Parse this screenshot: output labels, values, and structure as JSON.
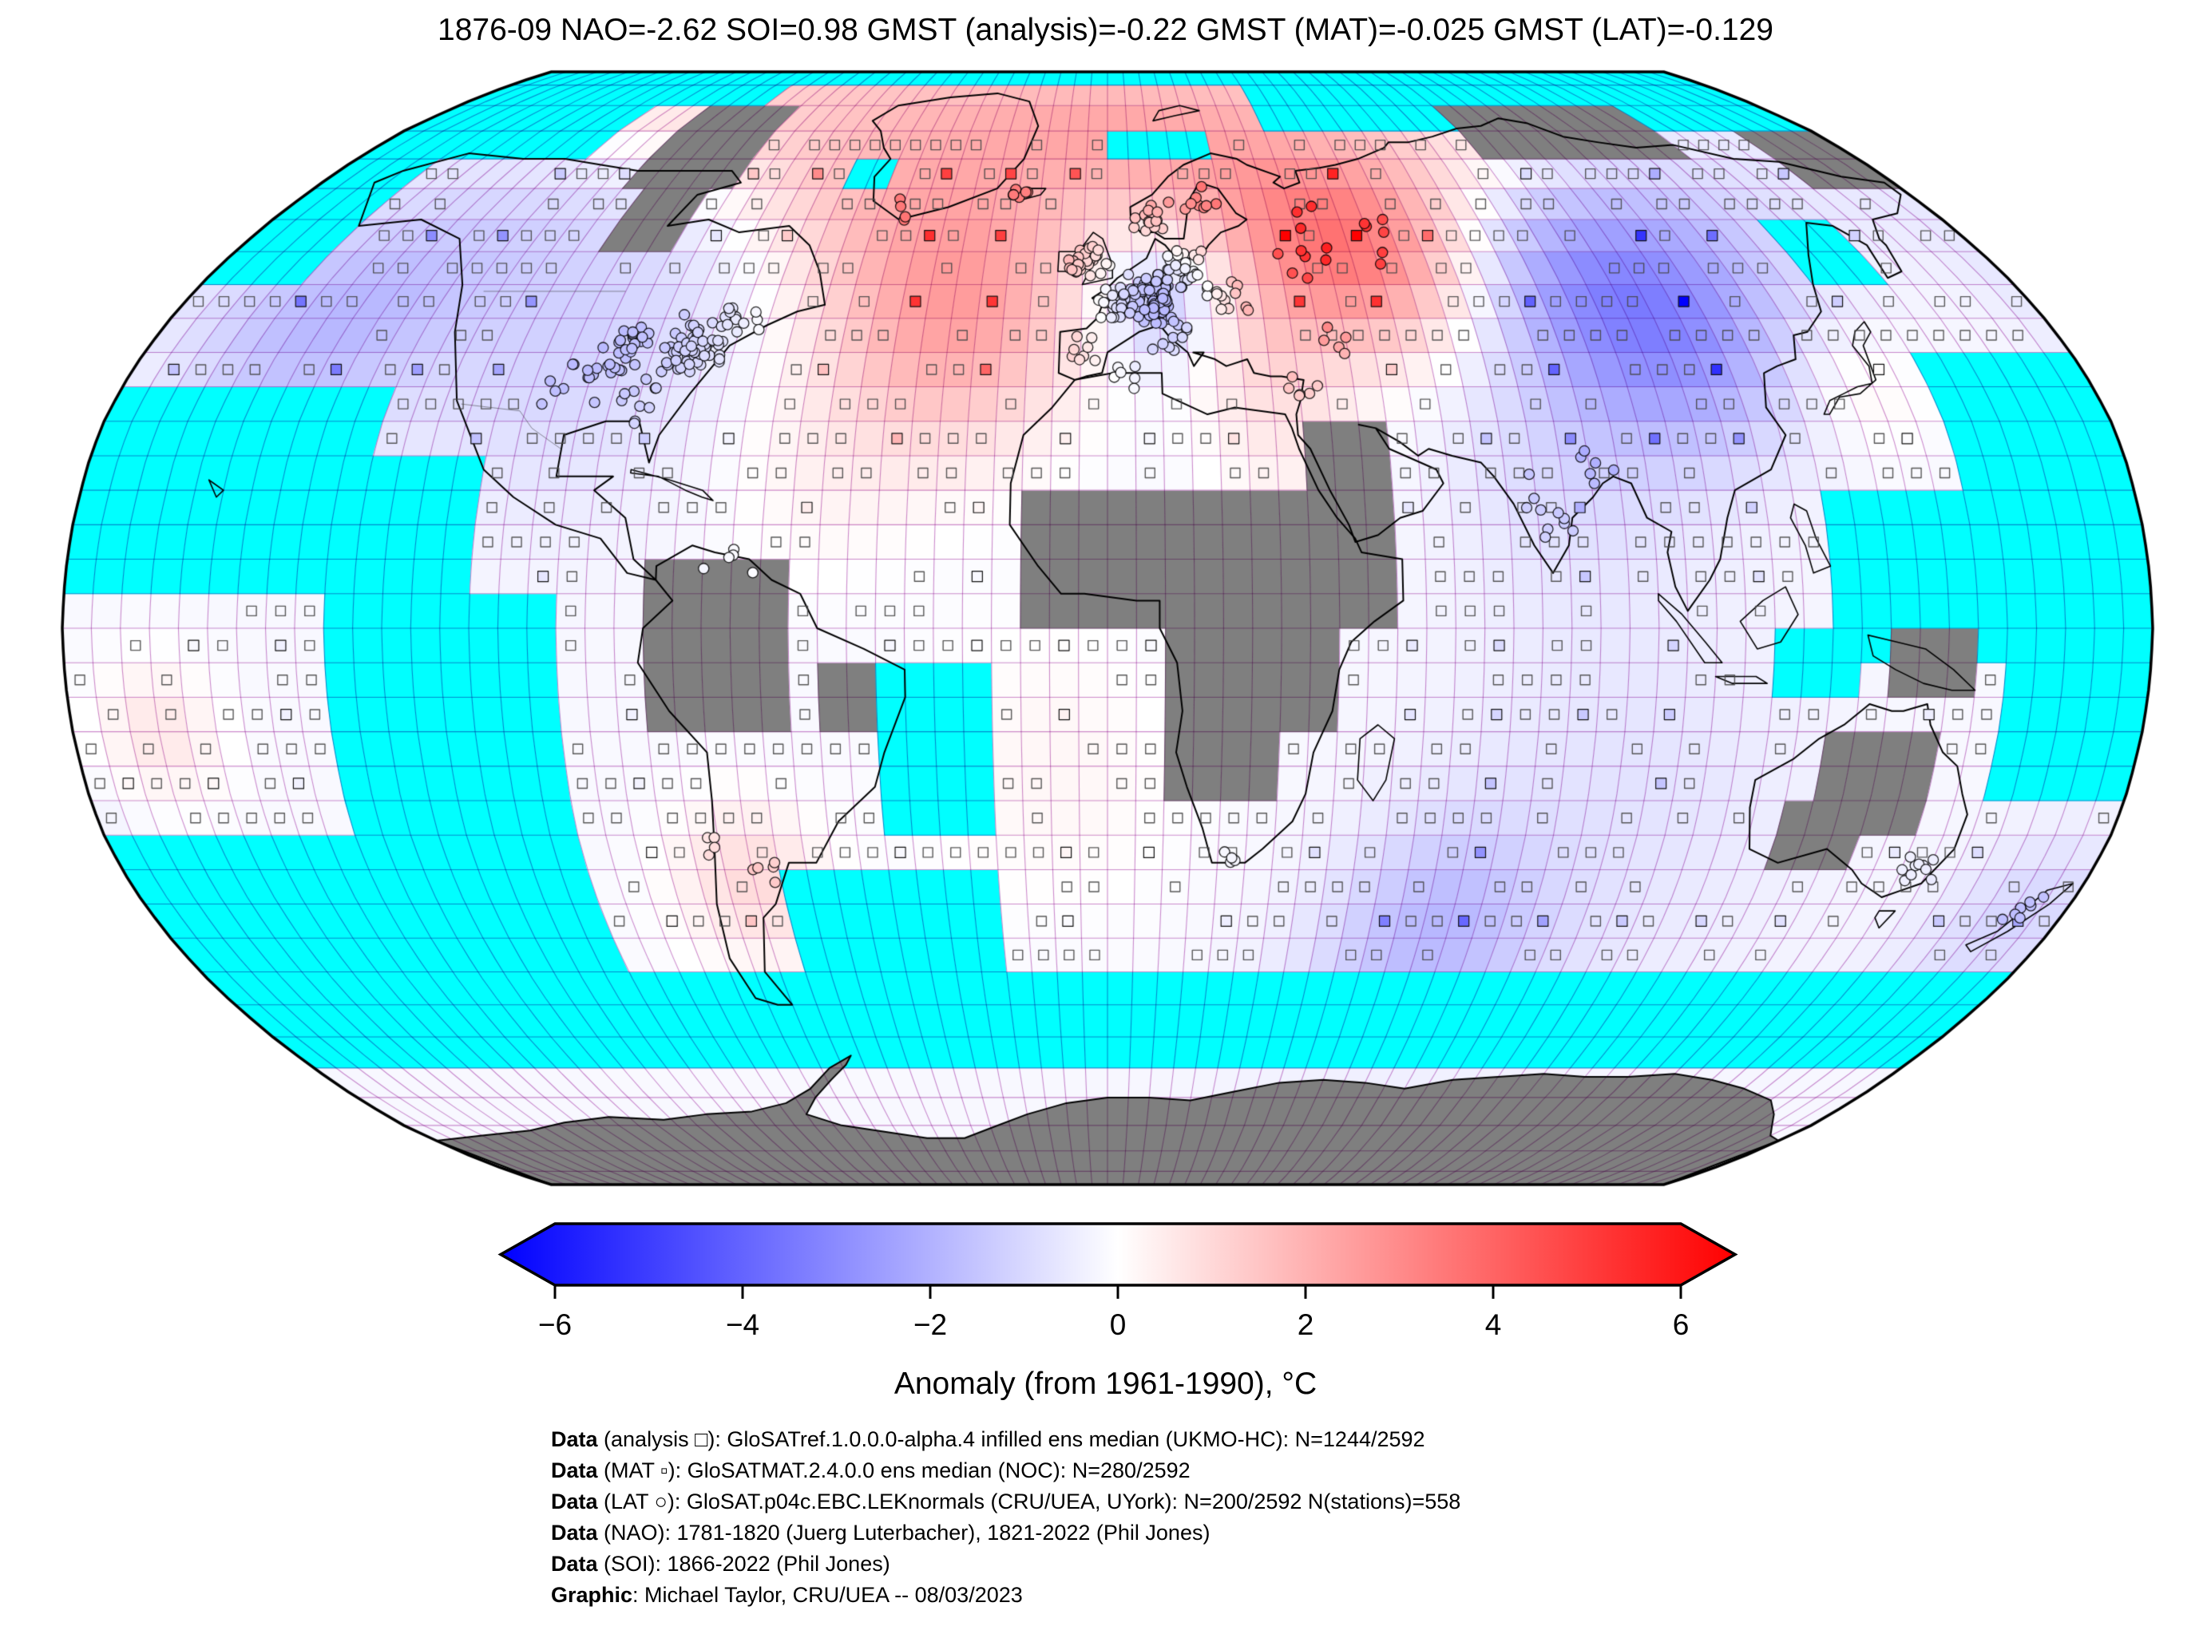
{
  "title": "1876-09 NAO=-2.62 SOI=0.98 GMST (analysis)=-0.22 GMST (MAT)=-0.025 GMST (LAT)=-0.129",
  "colorbar": {
    "label": "Anomaly (from 1961-1990), °C",
    "min": -6,
    "max": 6,
    "tick_values": [
      -6,
      -4,
      -2,
      0,
      2,
      4,
      6
    ],
    "tick_labels": [
      "−6",
      "−4",
      "−2",
      "0",
      "2",
      "4",
      "6"
    ],
    "color_min": "#0000ff",
    "color_mid": "#ffffff",
    "color_max": "#ff0000"
  },
  "credits": [
    {
      "label": "Data",
      "text": " (analysis □): GloSATref.1.0.0.0-alpha.4 infilled ens median (UKMO-HC): N=1244/2592"
    },
    {
      "label": "Data",
      "text": " (MAT ▫): GloSATMAT.2.4.0.0 ens median (NOC): N=280/2592"
    },
    {
      "label": "Data",
      "text": " (LAT ○): GloSAT.p04c.EBC.LEKnormals (CRU/UEA, UYork): N=200/2592 N(stations)=558"
    },
    {
      "label": "Data",
      "text": " (NAO): 1781-1820 (Juerg Luterbacher), 1821-2022 (Phil Jones)"
    },
    {
      "label": "Data",
      "text": " (SOI): 1866-2022 (Phil Jones)"
    },
    {
      "label": "Graphic",
      "text": ": Michael Taylor, CRU/UEA -- 08/03/2023"
    }
  ],
  "chart_data": {
    "type": "heatmap",
    "projection": "robinson",
    "grid_deg": 5,
    "title": "1876-09 NAO=-2.62 SOI=0.98 GMST (analysis)=-0.22 GMST (MAT)=-0.025 GMST (LAT)=-0.129",
    "colorbar_label": "Anomaly (from 1961-1990), °C",
    "value_range": [
      -6,
      6
    ],
    "date": "1876-09",
    "indices": {
      "NAO": -2.62,
      "SOI": 0.98,
      "GMST_analysis": -0.22,
      "GMST_MAT": -0.025,
      "GMST_LAT": -0.129
    },
    "counts": {
      "analysis_cells": "1244/2592",
      "MAT_cells": "280/2592",
      "LAT_cells": "200/2592",
      "stations": 558
    },
    "marker_legend": {
      "analysis": "open square",
      "MAT": "small filled square",
      "LAT": "open circle"
    },
    "colors": {
      "missing_ocean": "#00ffff",
      "missing_land": "#7f7f7f",
      "grid_multiply": "#cd8ccd",
      "coast": "#000000",
      "negative": "#0000ff",
      "zero": "#ffffff",
      "positive": "#ff0000"
    },
    "anomaly_blobs": [
      {
        "lon": -42,
        "lat": 70,
        "amp": 1.9,
        "sigma": 14
      },
      {
        "lon": -28,
        "lat": 45,
        "amp": 2.1,
        "sigma": 13
      },
      {
        "lon": 45,
        "lat": 70,
        "amp": 1.1,
        "sigma": 12
      },
      {
        "lon": 52,
        "lat": 56,
        "amp": 3.0,
        "sigma": 11
      },
      {
        "lon": 28,
        "lat": 44,
        "amp": 1.0,
        "sigma": 9
      },
      {
        "lon": 32,
        "lat": 27,
        "amp": 0.5,
        "sigma": 8
      },
      {
        "lon": 11,
        "lat": 48,
        "amp": -1.7,
        "sigma": 7
      },
      {
        "lon": 103,
        "lat": 47,
        "amp": -2.9,
        "sigma": 14
      },
      {
        "lon": -150,
        "lat": 44,
        "amp": -1.4,
        "sigma": 13
      },
      {
        "lon": -100,
        "lat": 44,
        "amp": -0.9,
        "sigma": 18
      },
      {
        "lon": -50,
        "lat": 25,
        "amp": 0.4,
        "sigma": 12
      },
      {
        "lon": -65,
        "lat": -37,
        "amp": 1.0,
        "sigma": 8
      },
      {
        "lon": 62,
        "lat": -44,
        "amp": -1.3,
        "sigma": 11
      },
      {
        "lon": 90,
        "lat": -25,
        "amp": -0.5,
        "sigma": 22
      },
      {
        "lon": 80,
        "lat": 25,
        "amp": -0.6,
        "sigma": 14
      },
      {
        "lon": 172,
        "lat": -42,
        "amp": -0.8,
        "sigma": 9
      },
      {
        "lon": 136,
        "lat": 36,
        "amp": 0.5,
        "sigma": 7
      },
      {
        "lon": -165,
        "lat": -15,
        "amp": 0.7,
        "sigma": 7
      },
      {
        "lon": -10,
        "lat": -20,
        "amp": 0.35,
        "sigma": 15
      },
      {
        "lon": 0,
        "lat": 0,
        "amp": -0.15,
        "sigma": 10000
      }
    ],
    "missing_ocean_rects": [
      [
        -180,
        180,
        85,
        90
      ],
      [
        -180,
        -125,
        70,
        85
      ],
      [
        -125,
        -95,
        78,
        85
      ],
      [
        40,
        180,
        77,
        85
      ],
      [
        100,
        145,
        75,
        80
      ],
      [
        0,
        25,
        72.5,
        77.5
      ],
      [
        -60,
        -50,
        65,
        70
      ],
      [
        -180,
        -160,
        50,
        68
      ],
      [
        -180,
        -132,
        5,
        37
      ],
      [
        -132,
        -112,
        5,
        25
      ],
      [
        -180,
        -95,
        -48,
        -28
      ],
      [
        -135,
        -95,
        -28,
        5
      ],
      [
        150,
        180,
        18,
        40
      ],
      [
        125,
        180,
        -5,
        18
      ],
      [
        155,
        180,
        -25,
        -5
      ],
      [
        116,
        130,
        -12,
        2
      ],
      [
        140,
        155,
        50,
        58
      ],
      [
        -180,
        180,
        -65,
        -48
      ],
      [
        -60,
        -20,
        -55,
        -33
      ],
      [
        -38,
        -22,
        -30,
        -5
      ]
    ],
    "missing_land_rects": [
      [
        -112,
        -85,
        66,
        78
      ],
      [
        -103,
        -92,
        57,
        66
      ],
      [
        88,
        142,
        68,
        78
      ],
      [
        160,
        180,
        64,
        75
      ],
      [
        -17,
        40,
        2,
        22
      ],
      [
        25,
        51,
        0,
        12
      ],
      [
        8,
        32,
        -25,
        -2
      ],
      [
        32,
        40,
        -15,
        -2
      ],
      [
        34,
        48,
        12,
        28
      ],
      [
        -80,
        -55,
        -16,
        9
      ],
      [
        -50,
        -38,
        -16,
        -3
      ],
      [
        -92,
        -88,
        13,
        17
      ],
      [
        127,
        143,
        -28,
        -14
      ],
      [
        120,
        134,
        -34,
        -26
      ],
      [
        136,
        151,
        -10,
        -2
      ]
    ],
    "station_clusters": [
      {
        "lon": 9,
        "lat": 48,
        "n": 90,
        "s": 3.5
      },
      {
        "lon": 2,
        "lat": 47,
        "n": 25,
        "s": 3
      },
      {
        "lon": -3,
        "lat": 54,
        "n": 22,
        "s": 2.5
      },
      {
        "lon": -7,
        "lat": 53,
        "n": 8,
        "s": 1.5
      },
      {
        "lon": 10,
        "lat": 60,
        "n": 18,
        "s": 3
      },
      {
        "lon": 20,
        "lat": 64,
        "n": 8,
        "s": 3
      },
      {
        "lon": 15,
        "lat": 52,
        "n": 25,
        "s": 3
      },
      {
        "lon": 25,
        "lat": 48,
        "n": 14,
        "s": 4
      },
      {
        "lon": 12,
        "lat": 42,
        "n": 10,
        "s": 2.5
      },
      {
        "lon": -4,
        "lat": 40,
        "n": 8,
        "s": 2.5
      },
      {
        "lon": 40,
        "lat": 56,
        "n": 10,
        "s": 6
      },
      {
        "lon": 55,
        "lat": 58,
        "n": 6,
        "s": 5
      },
      {
        "lon": -20,
        "lat": 64.5,
        "n": 6,
        "s": 1.5
      },
      {
        "lon": -45,
        "lat": 62,
        "n": 4,
        "s": 2
      },
      {
        "lon": 44,
        "lat": 42,
        "n": 5,
        "s": 3
      },
      {
        "lon": -78,
        "lat": 41,
        "n": 60,
        "s": 4.5
      },
      {
        "lon": -90,
        "lat": 41,
        "n": 28,
        "s": 4
      },
      {
        "lon": -70,
        "lat": 45,
        "n": 14,
        "s": 3
      },
      {
        "lon": -98,
        "lat": 35,
        "n": 10,
        "s": 4
      },
      {
        "lon": -85,
        "lat": 33,
        "n": 10,
        "s": 3
      },
      {
        "lon": 78,
        "lat": 17,
        "n": 10,
        "s": 5
      },
      {
        "lon": 85,
        "lat": 24,
        "n": 6,
        "s": 3
      },
      {
        "lon": 148,
        "lat": -34,
        "n": 10,
        "s": 3
      },
      {
        "lon": 172,
        "lat": -41,
        "n": 7,
        "s": 2.5
      },
      {
        "lon": -62,
        "lat": -35,
        "n": 5,
        "s": 3
      },
      {
        "lon": -71,
        "lat": -31,
        "n": 4,
        "s": 2
      },
      {
        "lon": -66,
        "lat": 12,
        "n": 5,
        "s": 4
      },
      {
        "lon": 3,
        "lat": 36,
        "n": 6,
        "s": 2
      },
      {
        "lon": 35,
        "lat": 34,
        "n": 6,
        "s": 3
      },
      {
        "lon": 22,
        "lat": -33,
        "n": 4,
        "s": 2
      }
    ]
  }
}
